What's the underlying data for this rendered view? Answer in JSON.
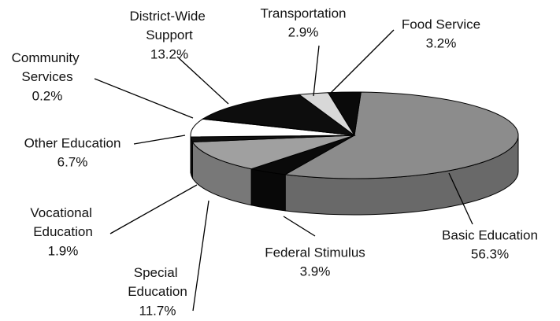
{
  "chart_data": {
    "type": "pie3d",
    "categories": [
      "Basic Education",
      "Federal Stimulus",
      "Special Education",
      "Vocational Education",
      "Other Education",
      "Community Services",
      "District-Wide Support",
      "Transportation",
      "Food Service"
    ],
    "values": [
      56.3,
      3.9,
      11.7,
      1.9,
      6.7,
      0.2,
      13.2,
      2.9,
      3.2
    ],
    "value_labels": [
      "56.3%",
      "3.9%",
      "11.7%",
      "1.9%",
      "6.7%",
      "0.2%",
      "13.2%",
      "2.9%",
      "3.2%"
    ],
    "colors": [
      "#8c8c8c",
      "#0a0a0a",
      "#a0a0a0",
      "#111111",
      "#ffffff",
      "#111111",
      "#0d0d0d",
      "#d8d8d8",
      "#0a0a0a"
    ]
  }
}
